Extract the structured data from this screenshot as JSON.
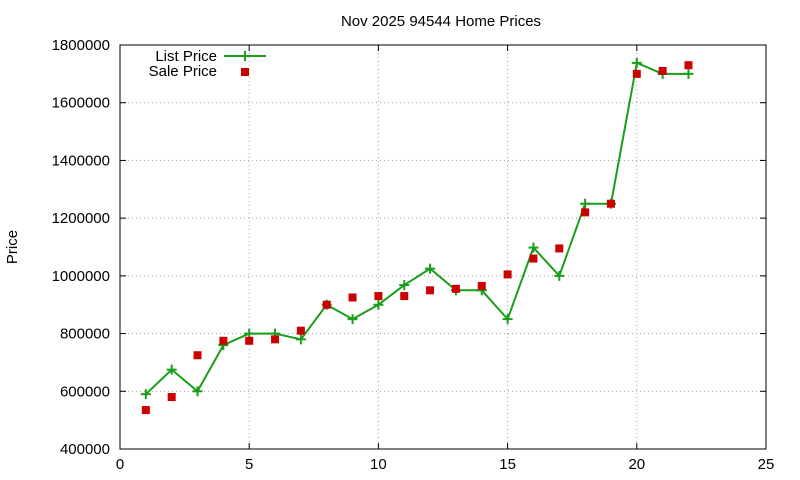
{
  "chart_data": {
    "type": "line",
    "title": "Nov 2025 94544 Home Prices",
    "xlabel": "",
    "ylabel": "Price",
    "xlim": [
      0,
      25
    ],
    "ylim": [
      400000,
      1800000
    ],
    "x_ticks": [
      0,
      5,
      10,
      15,
      20,
      25
    ],
    "y_ticks": [
      400000,
      600000,
      800000,
      1000000,
      1200000,
      1400000,
      1600000,
      1800000
    ],
    "grid": true,
    "legend_position": "top-left",
    "series": [
      {
        "name": "List Price",
        "style": "line-with-plus-markers",
        "color": "#1a9e1a",
        "x": [
          1,
          2,
          3,
          4,
          5,
          6,
          7,
          8,
          9,
          10,
          11,
          12,
          13,
          14,
          15,
          16,
          17,
          18,
          19,
          20,
          21,
          22
        ],
        "values": [
          590000,
          675000,
          600000,
          760000,
          800000,
          800000,
          780000,
          900000,
          850000,
          900000,
          968000,
          1025000,
          950000,
          950000,
          850000,
          1098000,
          1000000,
          1250000,
          1250000,
          1738000,
          1700000,
          1700000
        ]
      },
      {
        "name": "Sale Price",
        "style": "square-markers",
        "color": "#cc0000",
        "x": [
          1,
          2,
          3,
          4,
          5,
          6,
          7,
          8,
          9,
          10,
          11,
          12,
          13,
          14,
          15,
          16,
          17,
          18,
          19,
          20,
          21,
          22
        ],
        "values": [
          535000,
          580000,
          725000,
          775000,
          775000,
          780000,
          810000,
          900000,
          925000,
          930000,
          930000,
          950000,
          955000,
          965000,
          1005000,
          1060000,
          1095000,
          1220000,
          1250000,
          1700000,
          1710000,
          1730000
        ]
      }
    ]
  }
}
